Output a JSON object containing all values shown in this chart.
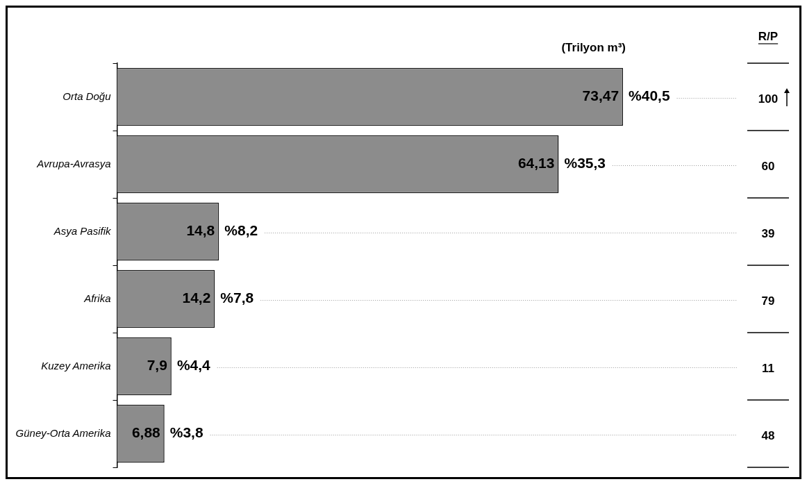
{
  "chart_data": {
    "type": "bar",
    "orientation": "horizontal",
    "xlabel": "(Trilyon m³)",
    "y2label": "R/P",
    "categories": [
      "Orta Doğu",
      "Avrupa-Avrasya",
      "Asya Pasifik",
      "Afrika",
      "Kuzey Amerika",
      "Güney-Orta Amerika"
    ],
    "values": [
      73.47,
      64.13,
      14.8,
      14.2,
      7.9,
      6.88
    ],
    "value_labels": [
      "73,47",
      "64,13",
      "14,8",
      "14,2",
      "7,9",
      "6,88"
    ],
    "color": "#8c8c8c",
    "xlim": [
      0,
      90
    ],
    "tick_labels": "y",
    "grid": "y",
    "legend": false,
    "annotations": [
      {
        "text": "%40,5",
        "x": 73.47,
        "y": "Orta Doğu"
      },
      {
        "text": "%35,3",
        "x": 64.13,
        "y": "Avrupa-Avrasya"
      },
      {
        "text": "%8,2",
        "x": 14.8,
        "y": "Asya Pasifik"
      },
      {
        "text": "%7,8",
        "x": 14.2,
        "y": "Afrika"
      },
      {
        "text": "%4,4",
        "x": 7.9,
        "y": "Kuzey Amerika"
      },
      {
        "text": "%3,8",
        "x": 6.88,
        "y": "Güney-Orta Amerika"
      },
      "100",
      "60",
      "39",
      "79",
      "11",
      "48"
    ]
  }
}
